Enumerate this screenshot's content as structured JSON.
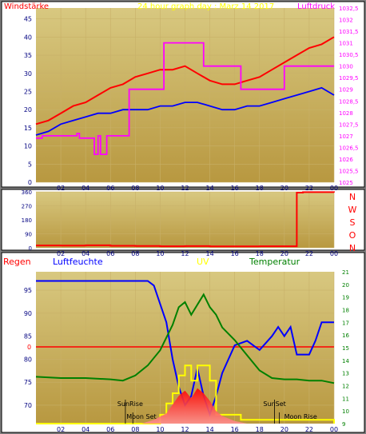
{
  "header": {
    "left_title": "Windstärke",
    "center_title": "24 hour graph day : Marz 14 2017",
    "right_title": "Luftdruck"
  },
  "compass_letters": [
    "N",
    "W",
    "S",
    "O",
    "N"
  ],
  "colors": {
    "wind": "#ff0000",
    "wind_avg": "#0000ff",
    "pressure": "#ff00ff",
    "humidity": "#0000ff",
    "uv": "#ffff00",
    "temperature": "#008000",
    "rain": "#ff0000",
    "solar": "#ff0000",
    "plot_top": "#d8c880",
    "plot_bottom": "#b89840"
  },
  "chart_data": [
    {
      "id": "wind_pressure",
      "type": "line",
      "title": "24 hour graph day : Marz 14 2017",
      "xlabel_ticks": [
        "02",
        "04",
        "06",
        "08",
        "10",
        "12",
        "14",
        "16",
        "18",
        "20",
        "22",
        "00"
      ],
      "x_range_hours": [
        0,
        24
      ],
      "left_axis": {
        "label": "Windstärke",
        "ylim": [
          0,
          48
        ],
        "ticks": [
          0,
          5,
          10,
          15,
          20,
          25,
          30,
          35,
          40,
          45
        ]
      },
      "right_axis": {
        "label": "Luftdruck",
        "ylim": [
          1025,
          1032.5
        ],
        "ticks": [
          "1025",
          "1025,5",
          "1026",
          "1026,5",
          "1027",
          "1027,5",
          "1028",
          "1028,5",
          "1029",
          "1029,5",
          "1030",
          "1030,5",
          "1031",
          "1031,5",
          "1032",
          "1032,5"
        ]
      },
      "series": [
        {
          "axis": "left",
          "color": "#ff0000",
          "x": [
            0,
            1,
            2,
            3,
            4,
            5,
            6,
            7,
            8,
            9,
            10,
            11,
            12,
            13,
            14,
            15,
            16,
            17,
            18,
            19,
            20,
            21,
            22,
            23,
            24
          ],
          "y": [
            16,
            17,
            19,
            21,
            22,
            24,
            26,
            27,
            29,
            30,
            31,
            31,
            32,
            30,
            28,
            27,
            27,
            28,
            29,
            31,
            33,
            35,
            37,
            38,
            40
          ]
        },
        {
          "axis": "left",
          "color": "#0000ff",
          "x": [
            0,
            1,
            2,
            3,
            4,
            5,
            6,
            7,
            8,
            9,
            10,
            11,
            12,
            13,
            14,
            15,
            16,
            17,
            18,
            19,
            20,
            21,
            22,
            23,
            24
          ],
          "y": [
            13,
            14,
            16,
            17,
            18,
            19,
            19,
            20,
            20,
            20,
            21,
            21,
            22,
            22,
            21,
            20,
            20,
            21,
            21,
            22,
            23,
            24,
            25,
            26,
            24
          ]
        },
        {
          "axis": "right",
          "color": "#ff00ff",
          "step": true,
          "x": [
            0,
            0.5,
            3.3,
            3.5,
            4.5,
            4.7,
            5.0,
            5.2,
            5.7,
            6.2,
            7.2,
            7.5,
            8.5,
            9.0,
            10.3,
            11.0,
            13.3,
            13.5,
            14.5,
            15.0,
            16.5,
            17.0,
            19.5,
            20.0,
            24.0
          ],
          "y": [
            1026.9,
            1027.0,
            1027.1,
            1026.9,
            1026.9,
            1026.2,
            1027.0,
            1026.2,
            1027.0,
            1027.0,
            1027.0,
            1029.0,
            1029.0,
            1029.0,
            1031.0,
            1031.0,
            1031.0,
            1030.0,
            1030.0,
            1030.0,
            1029.0,
            1029.0,
            1029.0,
            1030.0,
            1030.0
          ]
        }
      ]
    },
    {
      "id": "wind_direction",
      "type": "line",
      "xlabel_ticks": [
        "02",
        "04",
        "06",
        "08",
        "10",
        "12",
        "14",
        "16",
        "18",
        "20",
        "22",
        "00"
      ],
      "x_range_hours": [
        0,
        24
      ],
      "ylim": [
        0,
        360
      ],
      "yticks": [
        0,
        90,
        180,
        270,
        360
      ],
      "series": [
        {
          "color": "#ff0000",
          "x": [
            0,
            2,
            4,
            6,
            8,
            10,
            12,
            14,
            16,
            18,
            20.5,
            21.0,
            21.5,
            24
          ],
          "y": [
            15,
            14,
            16,
            13,
            12,
            10,
            11,
            9,
            9,
            10,
            10,
            355,
            358,
            356
          ]
        }
      ]
    },
    {
      "id": "humidity_temp_uv",
      "type": "line",
      "xlabel_ticks": [
        "02",
        "04",
        "06",
        "08",
        "10",
        "12",
        "14",
        "16",
        "18",
        "20",
        "22",
        "00"
      ],
      "x_range_hours": [
        0,
        24
      ],
      "legend": [
        "Regen",
        "Luftfeuchte",
        "UV",
        "Temperatur"
      ],
      "left_axis": {
        "label": "Luftfeuchte",
        "ylim": [
          66,
          99
        ],
        "ticks": [
          70,
          75,
          80,
          85,
          90,
          95
        ]
      },
      "rain_axis": {
        "label": "Regen",
        "ticks": [
          "0"
        ]
      },
      "right_axis": {
        "label": "Temperatur",
        "ylim": [
          9,
          21
        ],
        "ticks": [
          9,
          10,
          11,
          12,
          13,
          14,
          15,
          16,
          17,
          18,
          19,
          20,
          21
        ]
      },
      "annotations": [
        "SunRise",
        "Moon Set",
        "SunSet",
        "Moon Rise"
      ],
      "series": [
        {
          "name": "Luftfeuchte",
          "axis": "left",
          "color": "#0000ff",
          "x": [
            0,
            1,
            2,
            3,
            4,
            5,
            6,
            7,
            8,
            9,
            9.5,
            10,
            10.5,
            11,
            11.5,
            12,
            12.5,
            13,
            13.5,
            14,
            14.5,
            15,
            15.5,
            16,
            17,
            18,
            19,
            19.5,
            20,
            20.5,
            21,
            22,
            22.5,
            23,
            24
          ],
          "y": [
            97,
            97,
            97,
            97,
            97,
            97,
            97,
            97,
            97,
            97,
            96,
            92,
            88,
            80,
            74,
            70,
            72,
            78,
            72,
            68,
            72,
            77,
            80,
            83,
            84,
            82,
            85,
            87,
            85,
            87,
            81,
            81,
            84,
            88,
            88
          ]
        },
        {
          "name": "Temperatur",
          "axis": "right",
          "color": "#008000",
          "x": [
            0,
            2,
            4,
            6,
            7,
            8,
            9,
            10,
            11,
            11.5,
            12,
            12.5,
            13,
            13.5,
            14,
            14.5,
            15,
            16,
            17,
            18,
            19,
            20,
            21,
            22,
            23,
            24
          ],
          "y": [
            12.7,
            12.6,
            12.6,
            12.5,
            12.4,
            12.8,
            13.6,
            14.8,
            16.8,
            18.2,
            18.6,
            17.6,
            18.4,
            19.2,
            18.2,
            17.6,
            16.6,
            15.6,
            14.4,
            13.2,
            12.6,
            12.5,
            12.5,
            12.4,
            12.4,
            12.2
          ]
        },
        {
          "name": "UV",
          "axis": "right",
          "color": "#ffff00",
          "step": true,
          "x": [
            0,
            9.5,
            10.0,
            10.5,
            11.0,
            11.5,
            12.0,
            12.5,
            13.0,
            13.5,
            14.0,
            14.5,
            15.5,
            16.5,
            24
          ],
          "y": [
            9,
            9,
            9.7,
            10.6,
            11.4,
            12.8,
            13.6,
            12.4,
            13.6,
            13.6,
            12.4,
            9.7,
            9.7,
            9.3,
            9
          ]
        },
        {
          "name": "Solar",
          "axis": "right",
          "color": "#ff0000",
          "type": "area",
          "x": [
            8.5,
            9.5,
            10.5,
            11.0,
            11.5,
            12.0,
            12.5,
            13.0,
            13.5,
            14.0,
            14.5,
            15.0,
            16.0,
            17.0
          ],
          "y": [
            9,
            9.3,
            9.8,
            10.5,
            11.2,
            11.6,
            11.0,
            11.8,
            11.4,
            10.8,
            10.0,
            9.6,
            9.2,
            9
          ]
        }
      ]
    }
  ]
}
